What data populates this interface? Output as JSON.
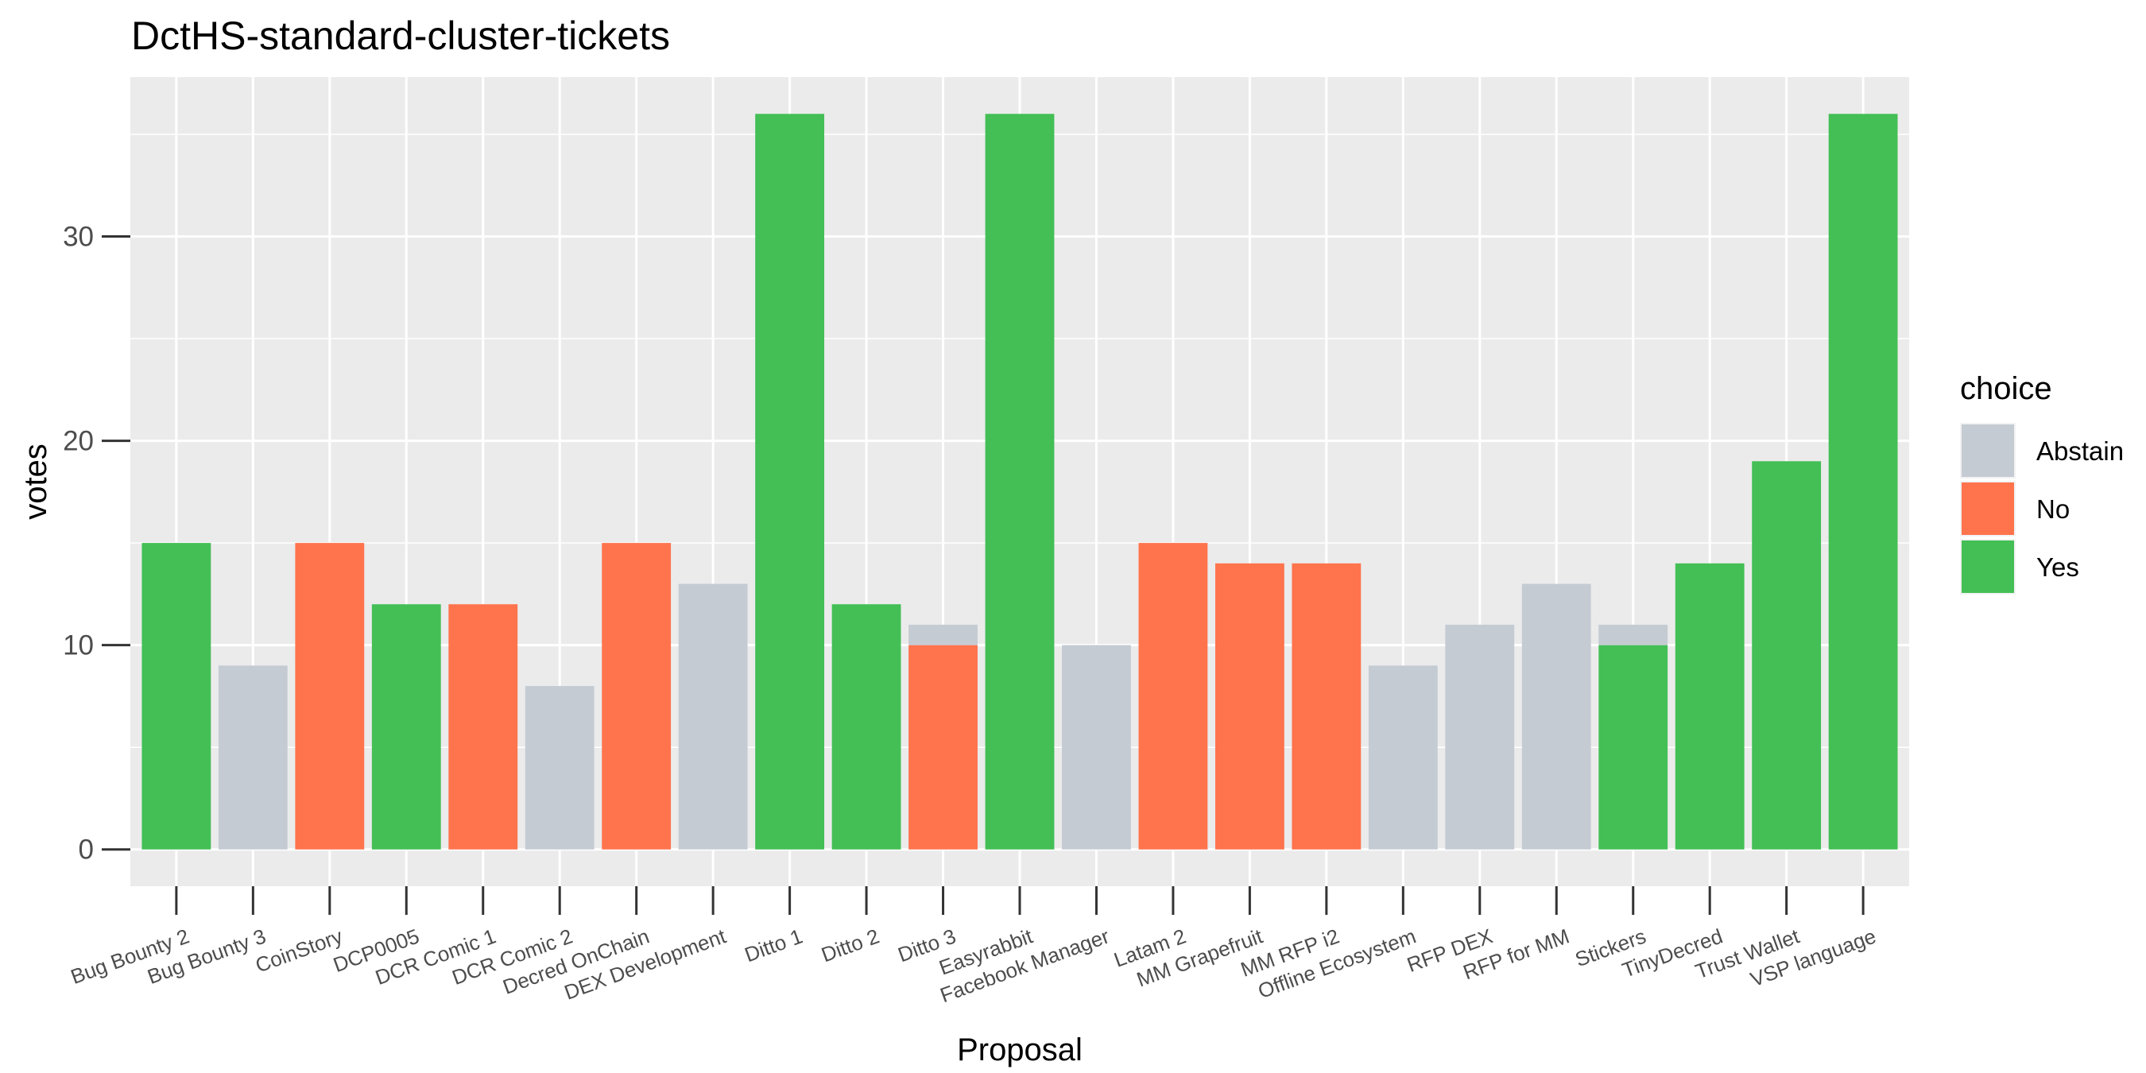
{
  "chart_data": {
    "type": "bar",
    "stacked": true,
    "title": "DctHS-standard-cluster-tickets",
    "xlabel": "Proposal",
    "ylabel": "votes",
    "ylim": [
      -1.8,
      37.8
    ],
    "yticks": [
      0,
      10,
      20,
      30
    ],
    "grid": true,
    "legend": {
      "title": "choice",
      "position": "right"
    },
    "categories": [
      "Bug Bounty 2",
      "Bug Bounty 3",
      "CoinStory",
      "DCP0005",
      "DCR Comic 1",
      "DCR Comic 2",
      "Decred OnChain",
      "DEX Development",
      "Ditto 1",
      "Ditto 2",
      "Ditto 3",
      "Easyrabbit",
      "Facebook Manager",
      "Latam 2",
      "MM Grapefruit",
      "MM RFP i2",
      "Offline Ecosystem",
      "RFP DEX",
      "RFP for MM",
      "Stickers",
      "TinyDecred",
      "Trust Wallet",
      "VSP language"
    ],
    "series": [
      {
        "name": "Abstain",
        "color": "#c5cbd3",
        "values": [
          0,
          9,
          0,
          0,
          0,
          8,
          0,
          13,
          0,
          0,
          1,
          0,
          10,
          0,
          0,
          0,
          9,
          11,
          13,
          1,
          0,
          0,
          0
        ]
      },
      {
        "name": "No",
        "color": "#ff734d",
        "values": [
          0,
          0,
          15,
          0,
          12,
          0,
          15,
          0,
          0,
          0,
          10,
          0,
          0,
          15,
          14,
          14,
          0,
          0,
          0,
          0,
          0,
          0,
          0
        ]
      },
      {
        "name": "Yes",
        "color": "#43bf55",
        "values": [
          15,
          0,
          0,
          12,
          0,
          0,
          0,
          0,
          36,
          12,
          0,
          36,
          0,
          0,
          0,
          0,
          0,
          0,
          0,
          10,
          14,
          19,
          36
        ]
      }
    ]
  }
}
